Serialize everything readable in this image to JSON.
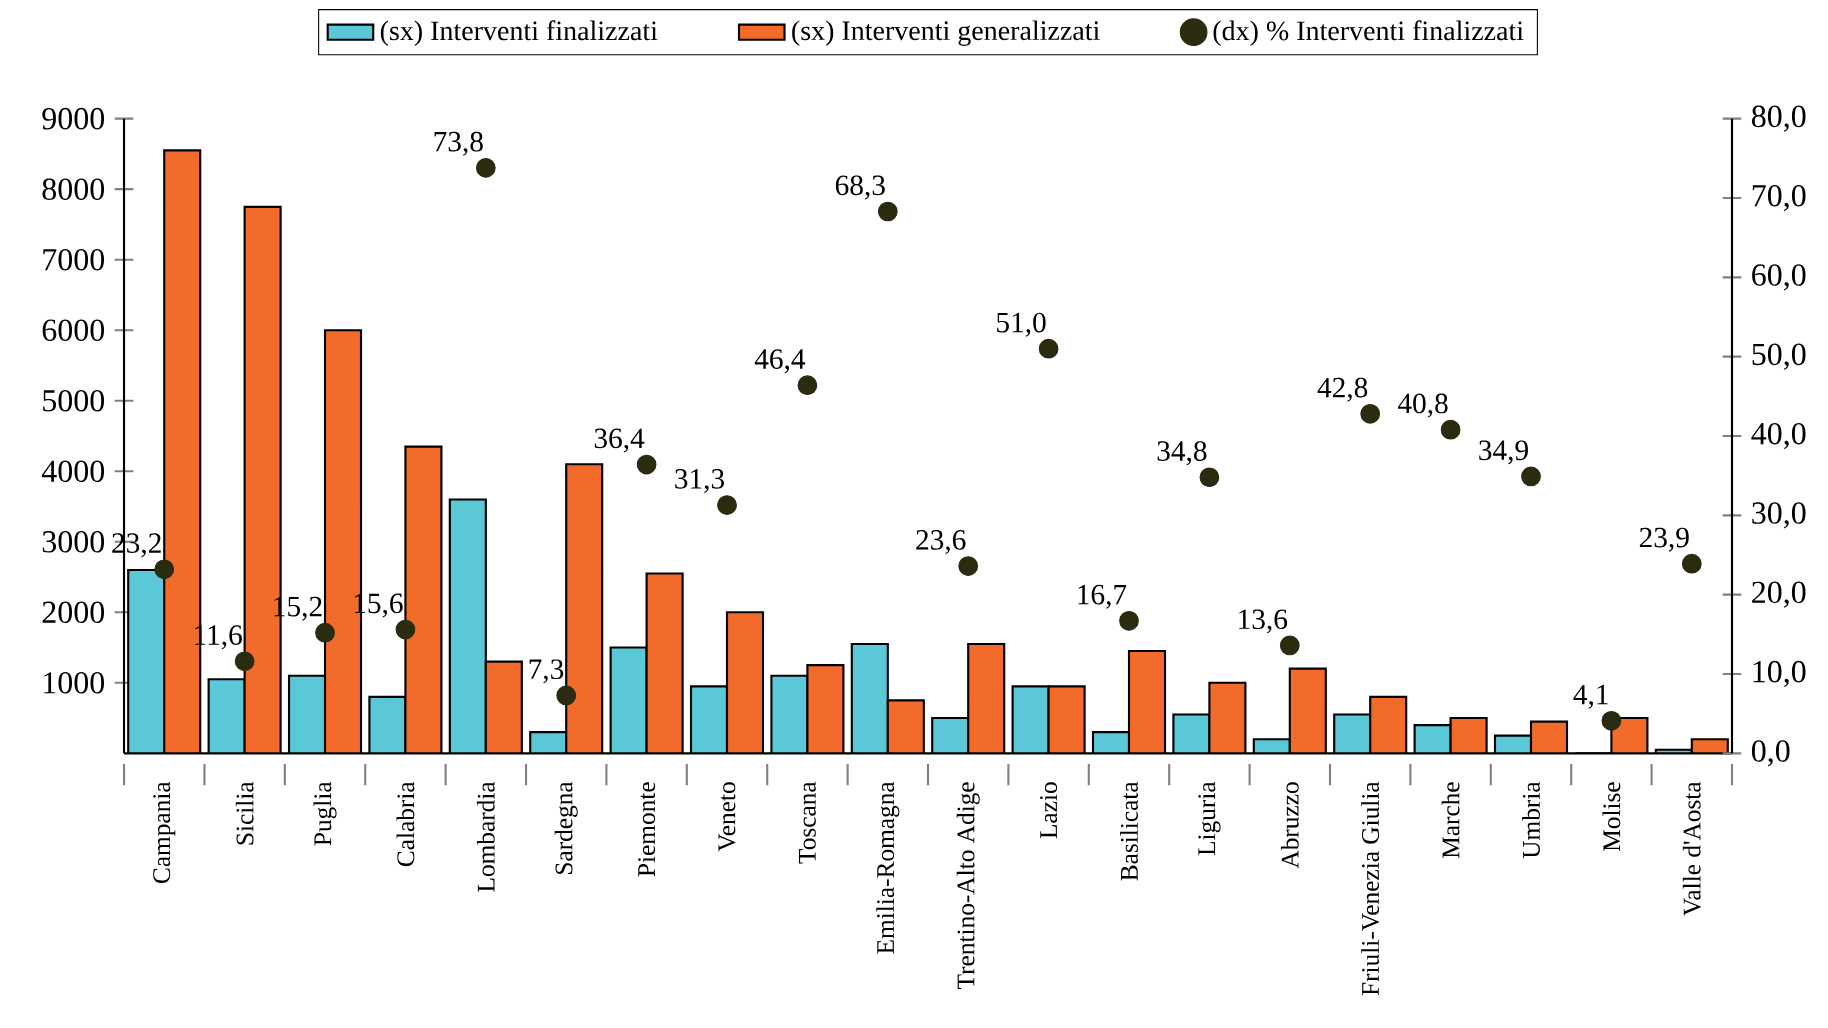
{
  "chart_data": {
    "type": "bar",
    "categories": [
      "Campania",
      "Sicilia",
      "Puglia",
      "Calabria",
      "Lombardia",
      "Sardegna",
      "Piemonte",
      "Veneto",
      "Toscana",
      "Emilia-Romagna",
      "Trentino-Alto Adige",
      "Lazio",
      "Basilicata",
      "Liguria",
      "Abruzzo",
      "Friuli-Venezia Giulia",
      "Marche",
      "Umbria",
      "Molise",
      "Valle d'Aosta"
    ],
    "series": [
      {
        "name": "(sx) Interventi finalizzati",
        "color": "#5bc8d8",
        "values": [
          2600,
          1050,
          1100,
          800,
          3600,
          300,
          1500,
          950,
          1100,
          1550,
          500,
          950,
          300,
          550,
          200,
          550,
          400,
          250,
          0,
          50
        ]
      },
      {
        "name": "(sx) Interventi generalizzati",
        "color": "#f26b2a",
        "values": [
          8550,
          7750,
          6000,
          4350,
          1300,
          4100,
          2550,
          2000,
          1250,
          750,
          1550,
          950,
          1450,
          1000,
          1200,
          800,
          500,
          450,
          500,
          200
        ]
      },
      {
        "name": "(dx) % Interventi finalizzati",
        "type": "scatter",
        "axis": "y2",
        "color": "#2b2b10",
        "values": [
          23.2,
          11.6,
          15.2,
          15.6,
          73.8,
          7.3,
          36.4,
          31.3,
          46.4,
          68.3,
          23.6,
          51.0,
          16.7,
          34.8,
          13.6,
          42.8,
          40.8,
          34.9,
          4.1,
          23.9
        ],
        "value_labels": [
          "23,2",
          "11,6",
          "15,2",
          "15,6",
          "73,8",
          "7,3",
          "36,4",
          "31,3",
          "46,4",
          "68,3",
          "23,6",
          "51,0",
          "16,7",
          "34,8",
          "13,6",
          "42,8",
          "40,8",
          "34,9",
          "4,1",
          "23,9"
        ]
      }
    ],
    "ylim": [
      0,
      9000
    ],
    "yticks": [
      1000,
      2000,
      3000,
      4000,
      5000,
      6000,
      7000,
      8000,
      9000
    ],
    "y2lim": [
      0,
      80
    ],
    "y2ticks": [
      {
        "value": 0,
        "label": "0,0"
      },
      {
        "value": 10,
        "label": "10,0"
      },
      {
        "value": 20,
        "label": "20,0"
      },
      {
        "value": 30,
        "label": "30,0"
      },
      {
        "value": 40,
        "label": "40,0"
      },
      {
        "value": 50,
        "label": "50,0"
      },
      {
        "value": 60,
        "label": "60,0"
      },
      {
        "value": 70,
        "label": "70,0"
      },
      {
        "value": 80,
        "label": "80,0"
      }
    ],
    "legend": "top",
    "marker": "circle",
    "grid": false
  }
}
